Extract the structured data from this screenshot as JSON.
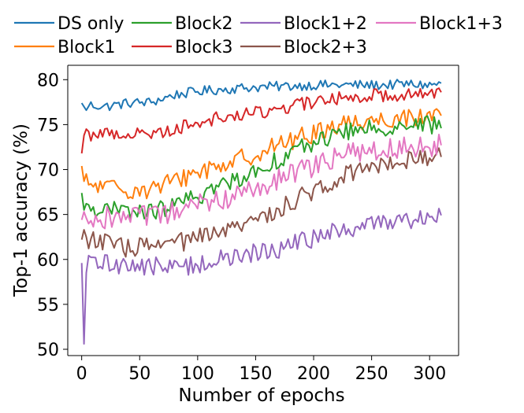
{
  "chart_data": {
    "type": "line",
    "title": "",
    "xlabel": "Number of epochs",
    "ylabel": "Top-1 accuracy (%)",
    "xlim": [
      -12,
      325
    ],
    "ylim": [
      49.3,
      81.6
    ],
    "xticks": [
      0,
      50,
      100,
      150,
      200,
      250,
      300
    ],
    "yticks": [
      50,
      55,
      60,
      65,
      70,
      75,
      80
    ],
    "legend_position": "top",
    "x_anchors": [
      0,
      20,
      40,
      60,
      80,
      100,
      120,
      140,
      160,
      180,
      200,
      220,
      240,
      260,
      280,
      300,
      310
    ],
    "series": [
      {
        "name": "DS only",
        "color": "#1f77b4",
        "start": [
          77.4,
          77.0,
          76.6
        ],
        "end": 79.6,
        "noise": 0.55,
        "values": [
          77.3,
          77.0,
          77.4,
          77.5,
          78.3,
          78.7,
          78.9,
          79.1,
          79.2,
          79.3,
          79.4,
          79.4,
          79.4,
          79.4,
          79.5,
          79.4,
          79.6
        ]
      },
      {
        "name": "Block1",
        "color": "#ff7f0e",
        "start": [
          70.4,
          68.7,
          69.5
        ],
        "end": 76.0,
        "noise": 1.1,
        "values": [
          68.5,
          68.0,
          67.8,
          67.8,
          68.7,
          69.8,
          70.5,
          71.3,
          72.3,
          73.2,
          74.0,
          75.0,
          75.4,
          75.6,
          75.8,
          76.0,
          76.0
        ]
      },
      {
        "name": "Block2",
        "color": "#2ca02c",
        "start": [
          67.4,
          65.5,
          66.2
        ],
        "end": 74.6,
        "noise": 1.0,
        "values": [
          66.0,
          65.5,
          65.3,
          65.3,
          66.0,
          67.0,
          68.2,
          69.3,
          70.5,
          71.8,
          73.0,
          74.0,
          74.4,
          74.7,
          74.9,
          75.0,
          74.9
        ]
      },
      {
        "name": "Block3",
        "color": "#d62728",
        "start": [
          71.8,
          73.8,
          74.5
        ],
        "end": 78.6,
        "noise": 0.75,
        "values": [
          73.8,
          74.0,
          74.0,
          74.0,
          74.5,
          75.3,
          75.8,
          76.1,
          76.5,
          77.0,
          77.5,
          77.9,
          78.2,
          78.3,
          78.4,
          78.5,
          78.6
        ]
      },
      {
        "name": "Block1+2",
        "color": "#9467bd",
        "start": [
          59.6,
          50.6,
          58.5
        ],
        "end": 64.9,
        "noise": 1.1,
        "values": [
          59.6,
          59.6,
          59.4,
          59.2,
          59.1,
          59.5,
          60.0,
          60.4,
          60.9,
          61.6,
          62.3,
          63.1,
          63.6,
          64.2,
          64.5,
          64.7,
          64.9
        ]
      },
      {
        "name": "Block2+3",
        "color": "#8c564b",
        "start": [
          62.2,
          63.3,
          62.5
        ],
        "end": 71.4,
        "noise": 1.1,
        "values": [
          62.5,
          61.8,
          61.3,
          61.4,
          61.8,
          62.3,
          62.9,
          63.7,
          65.0,
          66.3,
          67.6,
          69.0,
          70.2,
          70.8,
          71.2,
          71.4,
          71.5
        ]
      },
      {
        "name": "Block1+3",
        "color": "#e377c2",
        "start": [
          64.4,
          65.3,
          64.6
        ],
        "end": 72.7,
        "noise": 1.3,
        "values": [
          65.0,
          64.7,
          64.6,
          64.7,
          65.2,
          66.0,
          66.7,
          67.5,
          68.4,
          69.3,
          70.3,
          71.3,
          72.0,
          72.4,
          72.6,
          72.7,
          72.7
        ]
      }
    ]
  }
}
